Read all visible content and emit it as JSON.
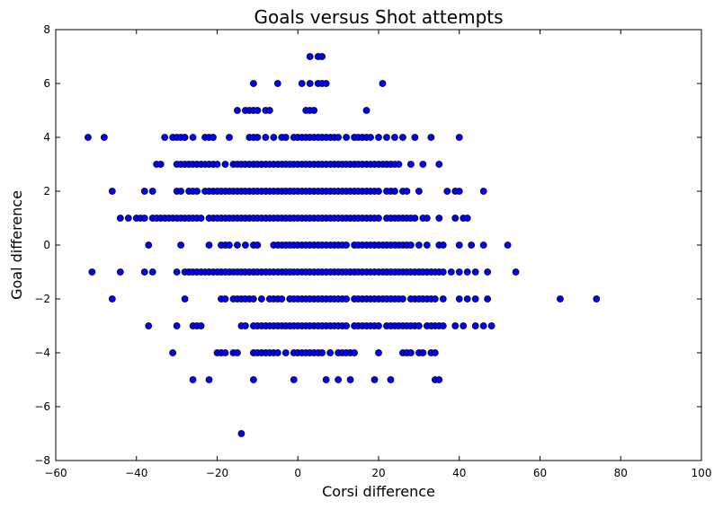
{
  "chart_data": {
    "type": "scatter",
    "title": "Goals versus Shot attempts",
    "xlabel": "Corsi difference",
    "ylabel": "Goal difference",
    "xlim": [
      -60,
      100
    ],
    "ylim": [
      -8,
      8
    ],
    "xticks": [
      -60,
      -40,
      -20,
      0,
      20,
      40,
      60,
      80,
      100
    ],
    "yticks": [
      -8,
      -6,
      -4,
      -2,
      0,
      2,
      4,
      6,
      8
    ],
    "xtick_labels": [
      "−60",
      "−40",
      "−20",
      "0",
      "20",
      "40",
      "60",
      "80",
      "100"
    ],
    "ytick_labels": [
      "−8",
      "−6",
      "−4",
      "−2",
      "0",
      "2",
      "4",
      "6",
      "8"
    ],
    "grid": false,
    "marker_color": "#0000ff",
    "marker_edge_color": "#000000",
    "points_by_y": {
      "7": [
        3,
        5,
        6
      ],
      "6": [
        -11,
        -5,
        1,
        3,
        5,
        6,
        7,
        21
      ],
      "5": [
        -15,
        -13,
        -12,
        -11,
        -10,
        -8,
        -7,
        2,
        3,
        4,
        17
      ],
      "4": [
        -52,
        -48,
        -33,
        -31,
        -30,
        -29,
        -28,
        -26,
        -23,
        -22,
        -21,
        -17,
        -12,
        -11,
        -10,
        -8,
        -6,
        -4,
        -3,
        -1,
        0,
        1,
        2,
        3,
        4,
        5,
        6,
        7,
        8,
        9,
        10,
        12,
        14,
        15,
        16,
        17,
        18,
        20,
        22,
        24,
        26,
        29,
        33,
        40
      ],
      "3": [
        -35,
        -34,
        -30,
        -29,
        -28,
        -27,
        -26,
        -25,
        -24,
        -23,
        -22,
        -21,
        -20,
        -18,
        -16,
        -15,
        -14,
        -13,
        -12,
        -11,
        -10,
        -9,
        -8,
        -7,
        -6,
        -5,
        -4,
        -3,
        -2,
        -1,
        0,
        1,
        2,
        3,
        4,
        5,
        6,
        7,
        8,
        9,
        10,
        11,
        12,
        13,
        14,
        15,
        16,
        17,
        18,
        19,
        20,
        21,
        22,
        23,
        24,
        25,
        28,
        31,
        35
      ],
      "2": [
        -46,
        -38,
        -36,
        -30,
        -29,
        -27,
        -26,
        -25,
        -23,
        -22,
        -21,
        -20,
        -19,
        -18,
        -17,
        -16,
        -15,
        -14,
        -13,
        -12,
        -11,
        -10,
        -9,
        -8,
        -7,
        -6,
        -5,
        -4,
        -3,
        -2,
        -1,
        0,
        1,
        2,
        3,
        4,
        5,
        6,
        7,
        8,
        9,
        10,
        11,
        12,
        13,
        14,
        15,
        16,
        17,
        18,
        19,
        20,
        22,
        23,
        24,
        26,
        27,
        30,
        37,
        39,
        40,
        46
      ],
      "1": [
        -44,
        -42,
        -40,
        -39,
        -38,
        -36,
        -35,
        -34,
        -33,
        -32,
        -31,
        -30,
        -29,
        -28,
        -27,
        -26,
        -25,
        -24,
        -22,
        -21,
        -20,
        -19,
        -18,
        -17,
        -16,
        -15,
        -14,
        -13,
        -12,
        -11,
        -10,
        -9,
        -8,
        -7,
        -6,
        -5,
        -4,
        -3,
        -2,
        -1,
        0,
        1,
        2,
        3,
        4,
        5,
        6,
        7,
        8,
        9,
        10,
        11,
        12,
        13,
        14,
        15,
        16,
        17,
        18,
        19,
        20,
        22,
        23,
        24,
        25,
        26,
        27,
        28,
        29,
        31,
        32,
        35,
        39,
        41,
        42
      ],
      "0": [
        -37,
        -29,
        -22,
        -19,
        -18,
        -17,
        -15,
        -13,
        -11,
        -10,
        -6,
        -5,
        -4,
        -3,
        -2,
        -1,
        0,
        1,
        2,
        3,
        4,
        5,
        6,
        7,
        8,
        9,
        10,
        11,
        12,
        14,
        15,
        16,
        17,
        18,
        19,
        20,
        21,
        22,
        23,
        24,
        25,
        26,
        27,
        28,
        30,
        32,
        35,
        36,
        40,
        43,
        46,
        52
      ],
      "-1": [
        -51,
        -44,
        -38,
        -36,
        -30,
        -28,
        -27,
        -26,
        -25,
        -24,
        -23,
        -22,
        -21,
        -20,
        -19,
        -18,
        -17,
        -16,
        -15,
        -14,
        -13,
        -12,
        -11,
        -10,
        -9,
        -8,
        -7,
        -6,
        -5,
        -4,
        -3,
        -2,
        -1,
        0,
        1,
        2,
        3,
        4,
        5,
        6,
        7,
        8,
        9,
        10,
        11,
        12,
        13,
        14,
        15,
        16,
        17,
        18,
        19,
        20,
        21,
        22,
        23,
        24,
        25,
        26,
        27,
        28,
        29,
        30,
        31,
        32,
        33,
        34,
        35,
        36,
        38,
        40,
        42,
        44,
        47,
        54
      ],
      "-2": [
        -46,
        -28,
        -19,
        -18,
        -16,
        -15,
        -14,
        -13,
        -12,
        -11,
        -9,
        -7,
        -6,
        -5,
        -4,
        -2,
        -1,
        0,
        1,
        2,
        3,
        4,
        5,
        6,
        7,
        8,
        9,
        10,
        11,
        12,
        14,
        15,
        16,
        17,
        18,
        19,
        20,
        21,
        22,
        23,
        24,
        25,
        26,
        28,
        29,
        30,
        31,
        32,
        33,
        34,
        36,
        40,
        42,
        44,
        47,
        65,
        74
      ],
      "-3": [
        -37,
        -30,
        -26,
        -25,
        -24,
        -14,
        -13,
        -11,
        -10,
        -9,
        -8,
        -7,
        -6,
        -5,
        -4,
        -3,
        -2,
        -1,
        0,
        1,
        2,
        3,
        4,
        5,
        6,
        7,
        8,
        9,
        10,
        11,
        12,
        14,
        15,
        16,
        17,
        18,
        19,
        20,
        22,
        23,
        24,
        25,
        26,
        27,
        28,
        29,
        30,
        32,
        33,
        34,
        35,
        36,
        39,
        41,
        44,
        46,
        48
      ],
      "-4": [
        -31,
        -20,
        -19,
        -18,
        -16,
        -15,
        -11,
        -10,
        -9,
        -8,
        -7,
        -6,
        -5,
        -3,
        -1,
        0,
        1,
        2,
        3,
        4,
        5,
        6,
        8,
        10,
        11,
        12,
        13,
        14,
        20,
        26,
        27,
        28,
        30,
        31,
        33,
        34
      ],
      "-5": [
        -26,
        -22,
        -11,
        -1,
        7,
        10,
        13,
        19,
        23,
        34,
        35
      ],
      "-7": [
        -14
      ]
    }
  }
}
